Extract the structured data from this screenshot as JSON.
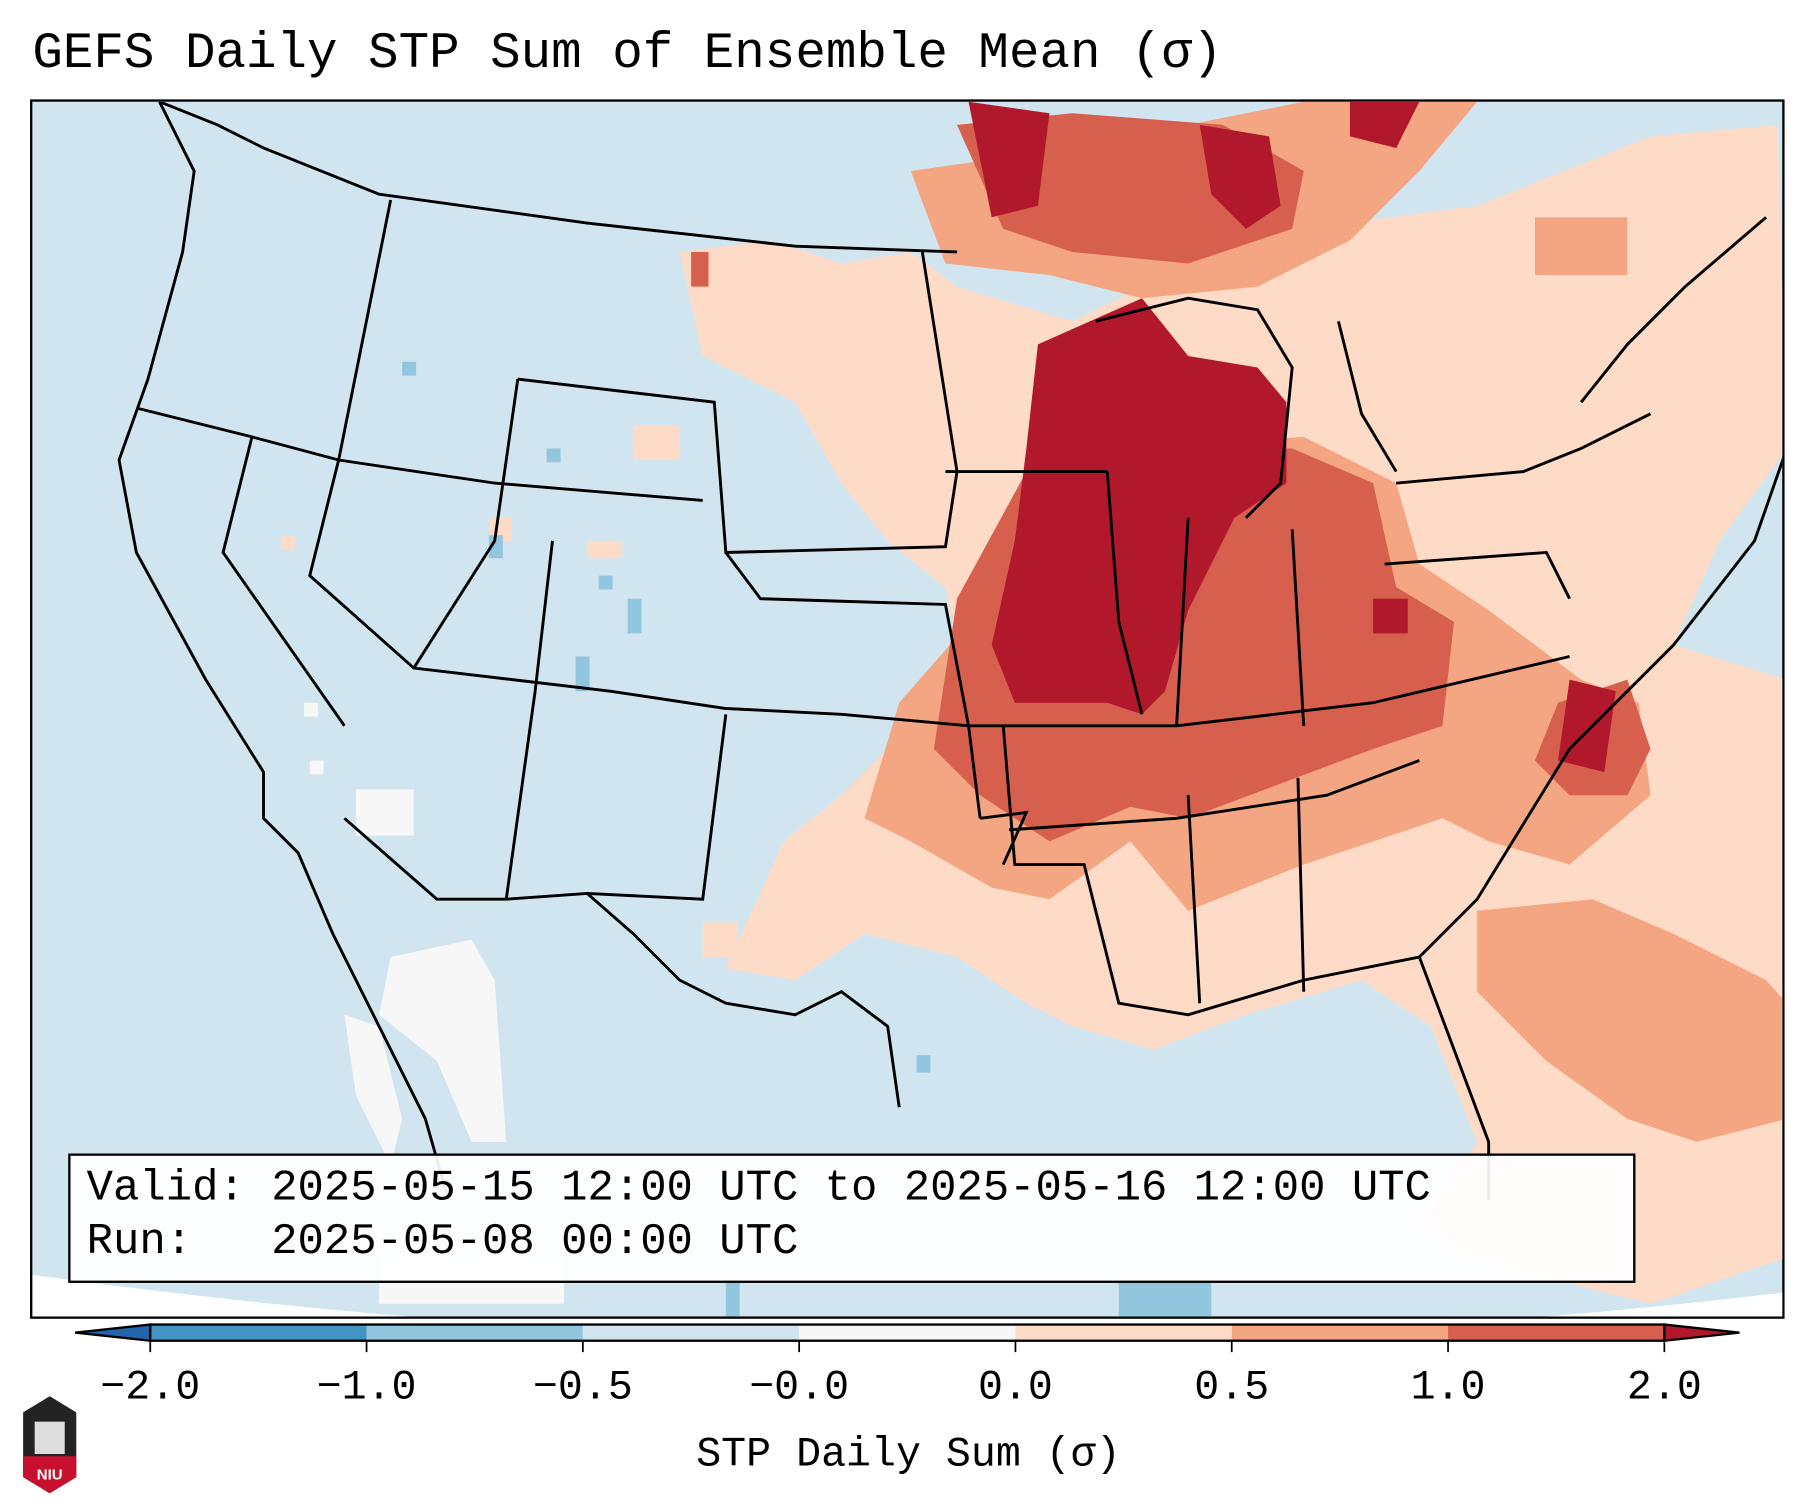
{
  "title": "GEFS Daily STP Sum of Ensemble Mean (σ)",
  "info": {
    "valid_label": "Valid:",
    "valid_value": "2025-05-15 12:00 UTC to 2025-05-16 12:00 UTC",
    "run_label": "Run:",
    "run_value": "2025-05-08 00:00 UTC"
  },
  "colorbar": {
    "label": "STP Daily Sum (σ)",
    "ticks": [
      "−2.0",
      "−1.0",
      "−0.5",
      "−0.0",
      "0.0",
      "0.5",
      "1.0",
      "2.0"
    ],
    "colors": [
      "#4393c3",
      "#92c5de",
      "#d1e5f0",
      "#f7f7f7",
      "#fddbc7",
      "#f4a582",
      "#d6604d"
    ],
    "under_color": "#2166ac",
    "over_color": "#b2182b"
  },
  "logo": {
    "text": "NIU"
  }
}
